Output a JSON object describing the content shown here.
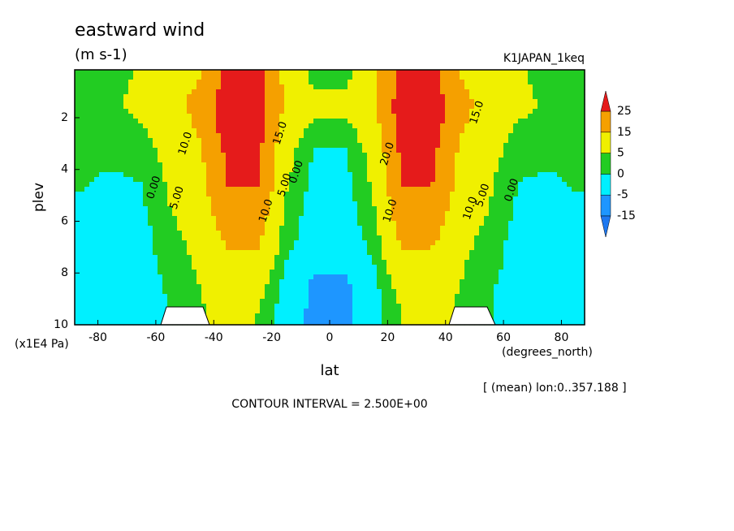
{
  "chart_data": {
    "type": "contour",
    "title": "eastward wind",
    "subtitle": "(m s-1)",
    "dataset": "K1JAPAN_1keq",
    "xlabel": "lat",
    "xunit": "(degrees_north)",
    "ylabel": "plev",
    "yunit": "(x1E4 Pa)",
    "note": "[ (mean) lon:0..357.188 ]",
    "contour_interval": "CONTOUR INTERVAL = 2.500E+00",
    "xlim": [
      -88,
      88
    ],
    "xticks": [
      -80,
      -60,
      -40,
      -20,
      0,
      20,
      40,
      60,
      80
    ],
    "ylim": [
      10,
      0.15
    ],
    "yticks": [
      2,
      4,
      6,
      8,
      10
    ],
    "x": [
      -85,
      -75,
      -65,
      -55,
      -45,
      -35,
      -25,
      -15,
      -5,
      5,
      15,
      25,
      35,
      45,
      55,
      65,
      75,
      85
    ],
    "y": [
      0.5,
      1.5,
      2.5,
      3.5,
      4.5,
      5.5,
      6.5,
      7.5,
      8.5,
      9.5
    ],
    "z": [
      [
        1,
        3,
        6,
        10,
        15,
        28,
        28,
        12,
        3,
        3,
        12,
        28,
        28,
        15,
        10,
        6,
        3,
        1
      ],
      [
        2,
        4,
        7,
        12,
        18,
        32,
        30,
        14,
        8,
        8,
        14,
        30,
        32,
        18,
        12,
        7,
        4,
        2
      ],
      [
        1,
        2,
        4,
        9,
        16,
        30,
        30,
        10,
        2,
        2,
        10,
        30,
        30,
        16,
        9,
        4,
        2,
        1
      ],
      [
        1,
        1,
        2,
        7,
        13,
        27,
        27,
        7,
        -1,
        -1,
        7,
        27,
        27,
        13,
        7,
        2,
        1,
        1
      ],
      [
        0.5,
        -1,
        0,
        6,
        12,
        26,
        26,
        6,
        -2,
        -2,
        6,
        26,
        26,
        12,
        6,
        0,
        -1,
        0.5
      ],
      [
        -1,
        -2,
        -1,
        5,
        10,
        22,
        22,
        4,
        -3,
        -3,
        4,
        22,
        22,
        10,
        5,
        -1,
        -2,
        -1
      ],
      [
        -1,
        -2,
        -2,
        3,
        8,
        18,
        18,
        2,
        -3,
        -3,
        2,
        18,
        18,
        8,
        3,
        -2,
        -2,
        -1
      ],
      [
        -1,
        -2,
        -2,
        2,
        6,
        13,
        13,
        0,
        -4,
        -4,
        0,
        13,
        13,
        6,
        2,
        -2,
        -2,
        -1
      ],
      [
        -1,
        -2,
        -3,
        1,
        5,
        9,
        8,
        -2,
        -6,
        -6,
        -2,
        8,
        9,
        5,
        1,
        -3,
        -2,
        -1
      ],
      [
        -1,
        -2,
        -5,
        0.5,
        4,
        8,
        5,
        -3,
        -6,
        -6,
        -3,
        5,
        8,
        4,
        0.5,
        -5,
        -2,
        -1
      ]
    ],
    "levels": [
      -15,
      -5,
      0,
      5,
      15,
      25
    ],
    "colors": [
      "#1e78f0",
      "#1e96ff",
      "#00f0ff",
      "#22cc22",
      "#f0f000",
      "#f5a000",
      "#e51b1b"
    ],
    "contour_labels": [
      {
        "label": "0.00",
        "x": -60.6,
        "y": 4.7
      },
      {
        "label": "5.00",
        "x": -52.6,
        "y": 5.1
      },
      {
        "label": "10.0",
        "x": -49.7,
        "y": 3.0
      },
      {
        "label": "15.0",
        "x": -17,
        "y": 2.6
      },
      {
        "label": "10.0",
        "x": -21.9,
        "y": 5.6
      },
      {
        "label": "5.00",
        "x": -15.4,
        "y": 4.6
      },
      {
        "label": "0.00",
        "x": -11.4,
        "y": 4.1
      },
      {
        "label": "20.0",
        "x": 20,
        "y": 3.4
      },
      {
        "label": "10.0",
        "x": 21,
        "y": 5.6
      },
      {
        "label": "15.0",
        "x": 50.9,
        "y": 1.8
      },
      {
        "label": "10.0",
        "x": 48.6,
        "y": 5.5
      },
      {
        "label": "5.00",
        "x": 52.9,
        "y": 5.0
      },
      {
        "label": "0.00",
        "x": 62.9,
        "y": 4.8
      }
    ]
  }
}
